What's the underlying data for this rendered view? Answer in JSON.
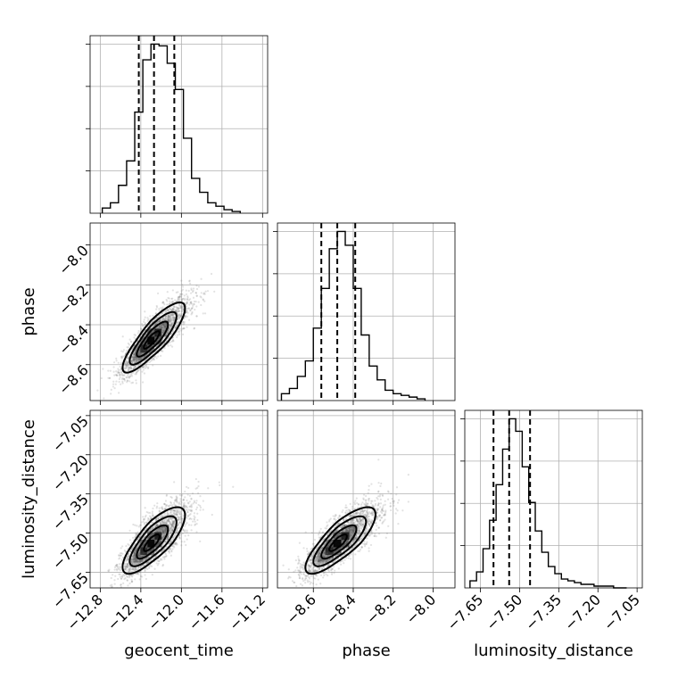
{
  "chart_data": {
    "type": "corner",
    "parameters": [
      "geocent_time",
      "phase",
      "luminosity_distance"
    ],
    "axis_labels": {
      "x": [
        "geocent_time",
        "phase",
        "luminosity_distance"
      ],
      "y": [
        "",
        "phase",
        "luminosity_distance"
      ]
    },
    "ranges": {
      "geocent_time": [
        -12.9,
        -11.15
      ],
      "phase": [
        -8.78,
        -7.89
      ],
      "luminosity_distance": [
        -7.71,
        -7.03
      ]
    },
    "ticks": {
      "geocent_time": [
        -12.8,
        -12.4,
        -12.0,
        -11.6,
        -11.2
      ],
      "phase": [
        -8.6,
        -8.4,
        -8.2,
        -8.0
      ],
      "luminosity_distance": [
        -7.65,
        -7.5,
        -7.35,
        -7.2,
        -7.05
      ]
    },
    "tick_labels": {
      "geocent_time": [
        "−12.8",
        "−12.4",
        "−12.0",
        "−11.6",
        "−11.2"
      ],
      "phase": [
        "−8.6",
        "−8.4",
        "−8.2",
        "−8.0"
      ],
      "luminosity_distance": [
        "−7.65",
        "−7.50",
        "−7.35",
        "−7.20",
        "−7.05"
      ]
    },
    "y_tick_labels": {
      "phase": [
        "−8.0",
        "−8.2",
        "−8.4",
        "−8.6"
      ],
      "luminosity_distance": [
        "−7.05",
        "−7.20",
        "−7.35",
        "−7.50",
        "−7.65"
      ]
    },
    "quantiles": {
      "geocent_time": [
        -12.42,
        -12.27,
        -12.07
      ],
      "phase": [
        -8.56,
        -8.48,
        -8.39
      ],
      "luminosity_distance": [
        -7.6,
        -7.54,
        -7.46
      ]
    },
    "histograms": {
      "geocent_time": {
        "bins": [
          -12.78,
          -12.7,
          -12.62,
          -12.54,
          -12.46,
          -12.38,
          -12.3,
          -12.22,
          -12.14,
          -12.06,
          -11.98,
          -11.9,
          -11.82,
          -11.74,
          -11.66,
          -11.58,
          -11.5,
          -11.42
        ],
        "counts": [
          3,
          6,
          16,
          30,
          58,
          88,
          97,
          96,
          86,
          71,
          43,
          20,
          12,
          6,
          4,
          2,
          1
        ]
      },
      "phase": {
        "bins": [
          -8.76,
          -8.72,
          -8.68,
          -8.64,
          -8.6,
          -8.56,
          -8.52,
          -8.48,
          -8.44,
          -8.4,
          -8.36,
          -8.32,
          -8.28,
          -8.24,
          -8.2,
          -8.16,
          -8.12,
          -8.08,
          -8.04
        ],
        "counts": [
          4,
          7,
          14,
          23,
          42,
          65,
          88,
          98,
          90,
          65,
          38,
          20,
          12,
          6,
          4,
          3,
          2,
          1
        ]
      },
      "luminosity_distance": {
        "bins": [
          -7.69,
          -7.665,
          -7.64,
          -7.615,
          -7.59,
          -7.565,
          -7.54,
          -7.515,
          -7.49,
          -7.465,
          -7.44,
          -7.415,
          -7.39,
          -7.365,
          -7.34,
          -7.315,
          -7.29,
          -7.265,
          -7.24,
          -7.215,
          -7.19,
          -7.165,
          -7.14,
          -7.115,
          -7.09
        ],
        "counts": [
          4,
          9,
          22,
          38,
          58,
          78,
          95,
          88,
          68,
          48,
          32,
          20,
          12,
          8,
          5,
          4,
          3,
          2,
          2,
          1,
          1,
          1,
          0,
          0
        ]
      }
    },
    "posterior_2d": {
      "phase_vs_geocent_time": {
        "center": [
          -12.3,
          -8.48
        ],
        "sigma": [
          0.14,
          0.08
        ],
        "correlation": 0.85,
        "n_samples": 2500
      },
      "luminosity_distance_vs_geocent_time": {
        "center": [
          -12.3,
          -7.54
        ],
        "sigma": [
          0.14,
          0.058
        ],
        "correlation": 0.78,
        "n_samples": 2500
      },
      "luminosity_distance_vs_phase": {
        "center": [
          -8.48,
          -7.54
        ],
        "sigma": [
          0.08,
          0.058
        ],
        "correlation": 0.8,
        "n_samples": 2500
      }
    },
    "contour_sigma_levels": [
      0.5,
      1.0,
      1.5,
      2.0
    ],
    "grid": true,
    "colors": {
      "lines": "#000000",
      "grid": "#b0b0b0",
      "samples": "#7a7a7a"
    }
  }
}
